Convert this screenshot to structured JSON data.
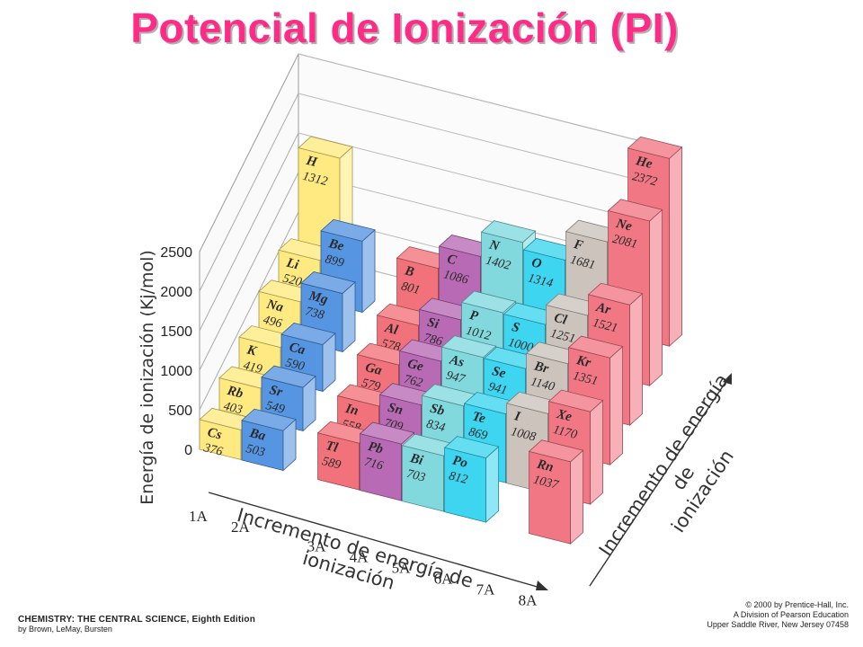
{
  "title": "Potencial de Ionización (PI)",
  "footer": {
    "book": "CHEMISTRY: THE CENTRAL SCIENCE, Eighth Edition",
    "authors": "by Brown, LeMay, Bursten",
    "copyright": "© 2000 by Prentice-Hall, Inc.",
    "division": "A Division of Pearson Education",
    "address": "Upper Saddle River, New Jersey 07458"
  },
  "chart_data": {
    "type": "bar",
    "ylabel": "Energía de ionización (Kj/mol)",
    "xlabel_lines": [
      "Incremento de energía de",
      "ionización"
    ],
    "zlabel_lines": [
      "Incremento de energía de",
      "ionización"
    ],
    "y_ticks": [
      "0",
      "500",
      "1000",
      "1500",
      "2000",
      "2500"
    ],
    "ylim": [
      0,
      2500
    ],
    "groups": [
      "1A",
      "2A",
      "3A",
      "4A",
      "5A",
      "6A",
      "7A",
      "8A"
    ],
    "colors": {
      "1A": "#ffe97a",
      "2A": "#4d8fdf",
      "3A": "#f06b73",
      "4A": "#b463b0",
      "5A": "#7ad7dc",
      "6A": "#33d3ee",
      "7A": "#c8c0b8",
      "8A": "#f0707e",
      "H": "#ffe97a"
    },
    "elements": [
      {
        "symbol": "H",
        "value": 1312,
        "group": "1A",
        "period": 1
      },
      {
        "symbol": "Li",
        "value": 520,
        "group": "1A",
        "period": 2
      },
      {
        "symbol": "Na",
        "value": 496,
        "group": "1A",
        "period": 3
      },
      {
        "symbol": "K",
        "value": 419,
        "group": "1A",
        "period": 4
      },
      {
        "symbol": "Rb",
        "value": 403,
        "group": "1A",
        "period": 5
      },
      {
        "symbol": "Cs",
        "value": 376,
        "group": "1A",
        "period": 6
      },
      {
        "symbol": "Be",
        "value": 899,
        "group": "2A",
        "period": 2
      },
      {
        "symbol": "Mg",
        "value": 738,
        "group": "2A",
        "period": 3
      },
      {
        "symbol": "Ca",
        "value": 590,
        "group": "2A",
        "period": 4
      },
      {
        "symbol": "Sr",
        "value": 549,
        "group": "2A",
        "period": 5
      },
      {
        "symbol": "Ba",
        "value": 503,
        "group": "2A",
        "period": 6
      },
      {
        "symbol": "B",
        "value": 801,
        "group": "3A",
        "period": 2
      },
      {
        "symbol": "Al",
        "value": 578,
        "group": "3A",
        "period": 3
      },
      {
        "symbol": "Ga",
        "value": 579,
        "group": "3A",
        "period": 4
      },
      {
        "symbol": "In",
        "value": 558,
        "group": "3A",
        "period": 5
      },
      {
        "symbol": "Tl",
        "value": 589,
        "group": "3A",
        "period": 6
      },
      {
        "symbol": "C",
        "value": 1086,
        "group": "4A",
        "period": 2
      },
      {
        "symbol": "Si",
        "value": 786,
        "group": "4A",
        "period": 3
      },
      {
        "symbol": "Ge",
        "value": 762,
        "group": "4A",
        "period": 4
      },
      {
        "symbol": "Sn",
        "value": 709,
        "group": "4A",
        "period": 5
      },
      {
        "symbol": "Pb",
        "value": 716,
        "group": "4A",
        "period": 6
      },
      {
        "symbol": "N",
        "value": 1402,
        "group": "5A",
        "period": 2
      },
      {
        "symbol": "P",
        "value": 1012,
        "group": "5A",
        "period": 3
      },
      {
        "symbol": "As",
        "value": 947,
        "group": "5A",
        "period": 4
      },
      {
        "symbol": "Sb",
        "value": 834,
        "group": "5A",
        "period": 5
      },
      {
        "symbol": "Bi",
        "value": 703,
        "group": "5A",
        "period": 6
      },
      {
        "symbol": "O",
        "value": 1314,
        "group": "6A",
        "period": 2
      },
      {
        "symbol": "S",
        "value": 1000,
        "group": "6A",
        "period": 3
      },
      {
        "symbol": "Se",
        "value": 941,
        "group": "6A",
        "period": 4
      },
      {
        "symbol": "Te",
        "value": 869,
        "group": "6A",
        "period": 5
      },
      {
        "symbol": "Po",
        "value": 812,
        "group": "6A",
        "period": 6
      },
      {
        "symbol": "F",
        "value": 1681,
        "group": "7A",
        "period": 2
      },
      {
        "symbol": "Cl",
        "value": 1251,
        "group": "7A",
        "period": 3
      },
      {
        "symbol": "Br",
        "value": 1140,
        "group": "7A",
        "period": 4
      },
      {
        "symbol": "I",
        "value": 1008,
        "group": "7A",
        "period": 5
      },
      {
        "symbol": "He",
        "value": 2372,
        "group": "8A",
        "period": 1
      },
      {
        "symbol": "Ne",
        "value": 2081,
        "group": "8A",
        "period": 2
      },
      {
        "symbol": "Ar",
        "value": 1521,
        "group": "8A",
        "period": 3
      },
      {
        "symbol": "Kr",
        "value": 1351,
        "group": "8A",
        "period": 4
      },
      {
        "symbol": "Xe",
        "value": 1170,
        "group": "8A",
        "period": 5
      },
      {
        "symbol": "Rn",
        "value": 1037,
        "group": "8A",
        "period": 6
      }
    ]
  }
}
